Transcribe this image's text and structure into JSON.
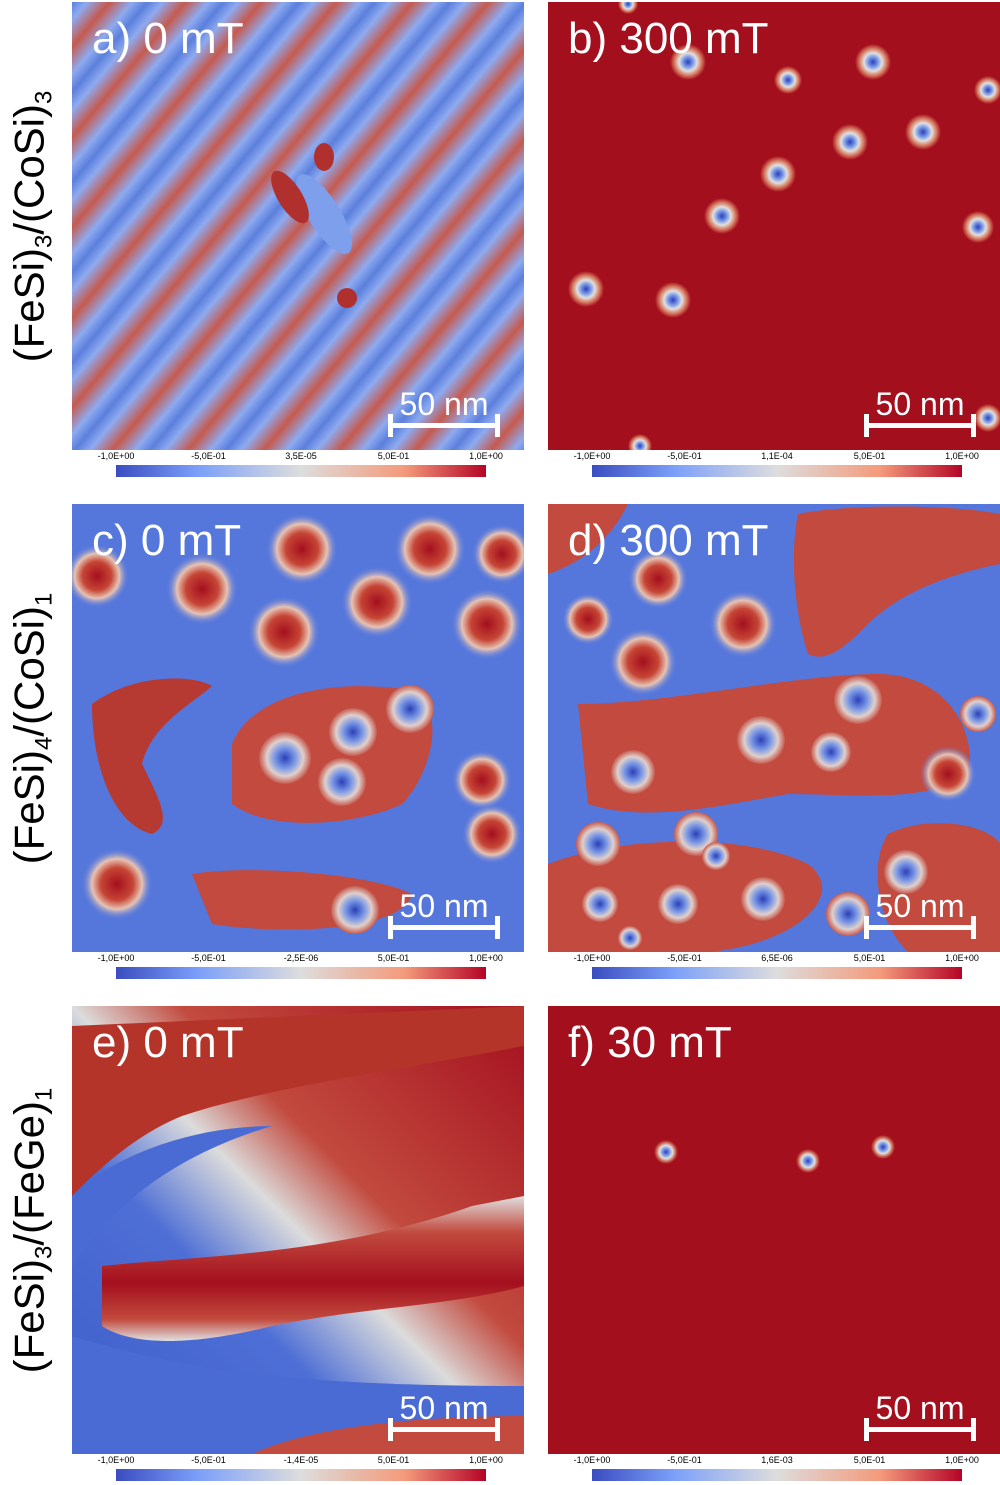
{
  "rows": [
    {
      "label_main_1": "(FeSi)",
      "label_sub_1": "3",
      "label_main_2": "/(CoSi)",
      "label_sub_2": "3"
    },
    {
      "label_main_1": "(FeSi)",
      "label_sub_1": "4",
      "label_main_2": "/(CoSi)",
      "label_sub_2": "1"
    },
    {
      "label_main_1": "(FeSi)",
      "label_sub_1": "3",
      "label_main_2": "/(FeGe)",
      "label_sub_2": "1"
    }
  ],
  "panels": [
    {
      "id": "a",
      "label": "a) 0 mT",
      "scale_bar": "50 nm",
      "colorbar": [
        "-1,0E+00",
        "-5,0E-01",
        "3,5E-05",
        "5,0E-01",
        "1,0E+00"
      ]
    },
    {
      "id": "b",
      "label": "b) 300 mT",
      "scale_bar": "50 nm",
      "colorbar": [
        "-1,0E+00",
        "-5,0E-01",
        "1,1E-04",
        "5,0E-01",
        "1,0E+00"
      ]
    },
    {
      "id": "c",
      "label": "c) 0 mT",
      "scale_bar": "50 nm",
      "colorbar": [
        "-1,0E+00",
        "-5,0E-01",
        "-2,5E-06",
        "5,0E-01",
        "1,0E+00"
      ]
    },
    {
      "id": "d",
      "label": "d) 300 mT",
      "scale_bar": "50 nm",
      "colorbar": [
        "-1,0E+00",
        "-5,0E-01",
        "6,5E-06",
        "5,0E-01",
        "1,0E+00"
      ]
    },
    {
      "id": "e",
      "label": "e) 0 mT",
      "scale_bar": "50 nm",
      "colorbar": [
        "-1,0E+00",
        "-5,0E-01",
        "-1,4E-05",
        "5,0E-01",
        "1,0E+00"
      ]
    },
    {
      "id": "f",
      "label": "f) 30 mT",
      "scale_bar": "50 nm",
      "colorbar": [
        "-1,0E+00",
        "-5,0E-01",
        "1,6E-03",
        "5,0E-01",
        "1,0E+00"
      ]
    }
  ],
  "colors": {
    "red": "#a40f1e",
    "blue": "#4a6fd6",
    "light_blue": "#8aa9ea",
    "white": "#eeeeee"
  }
}
